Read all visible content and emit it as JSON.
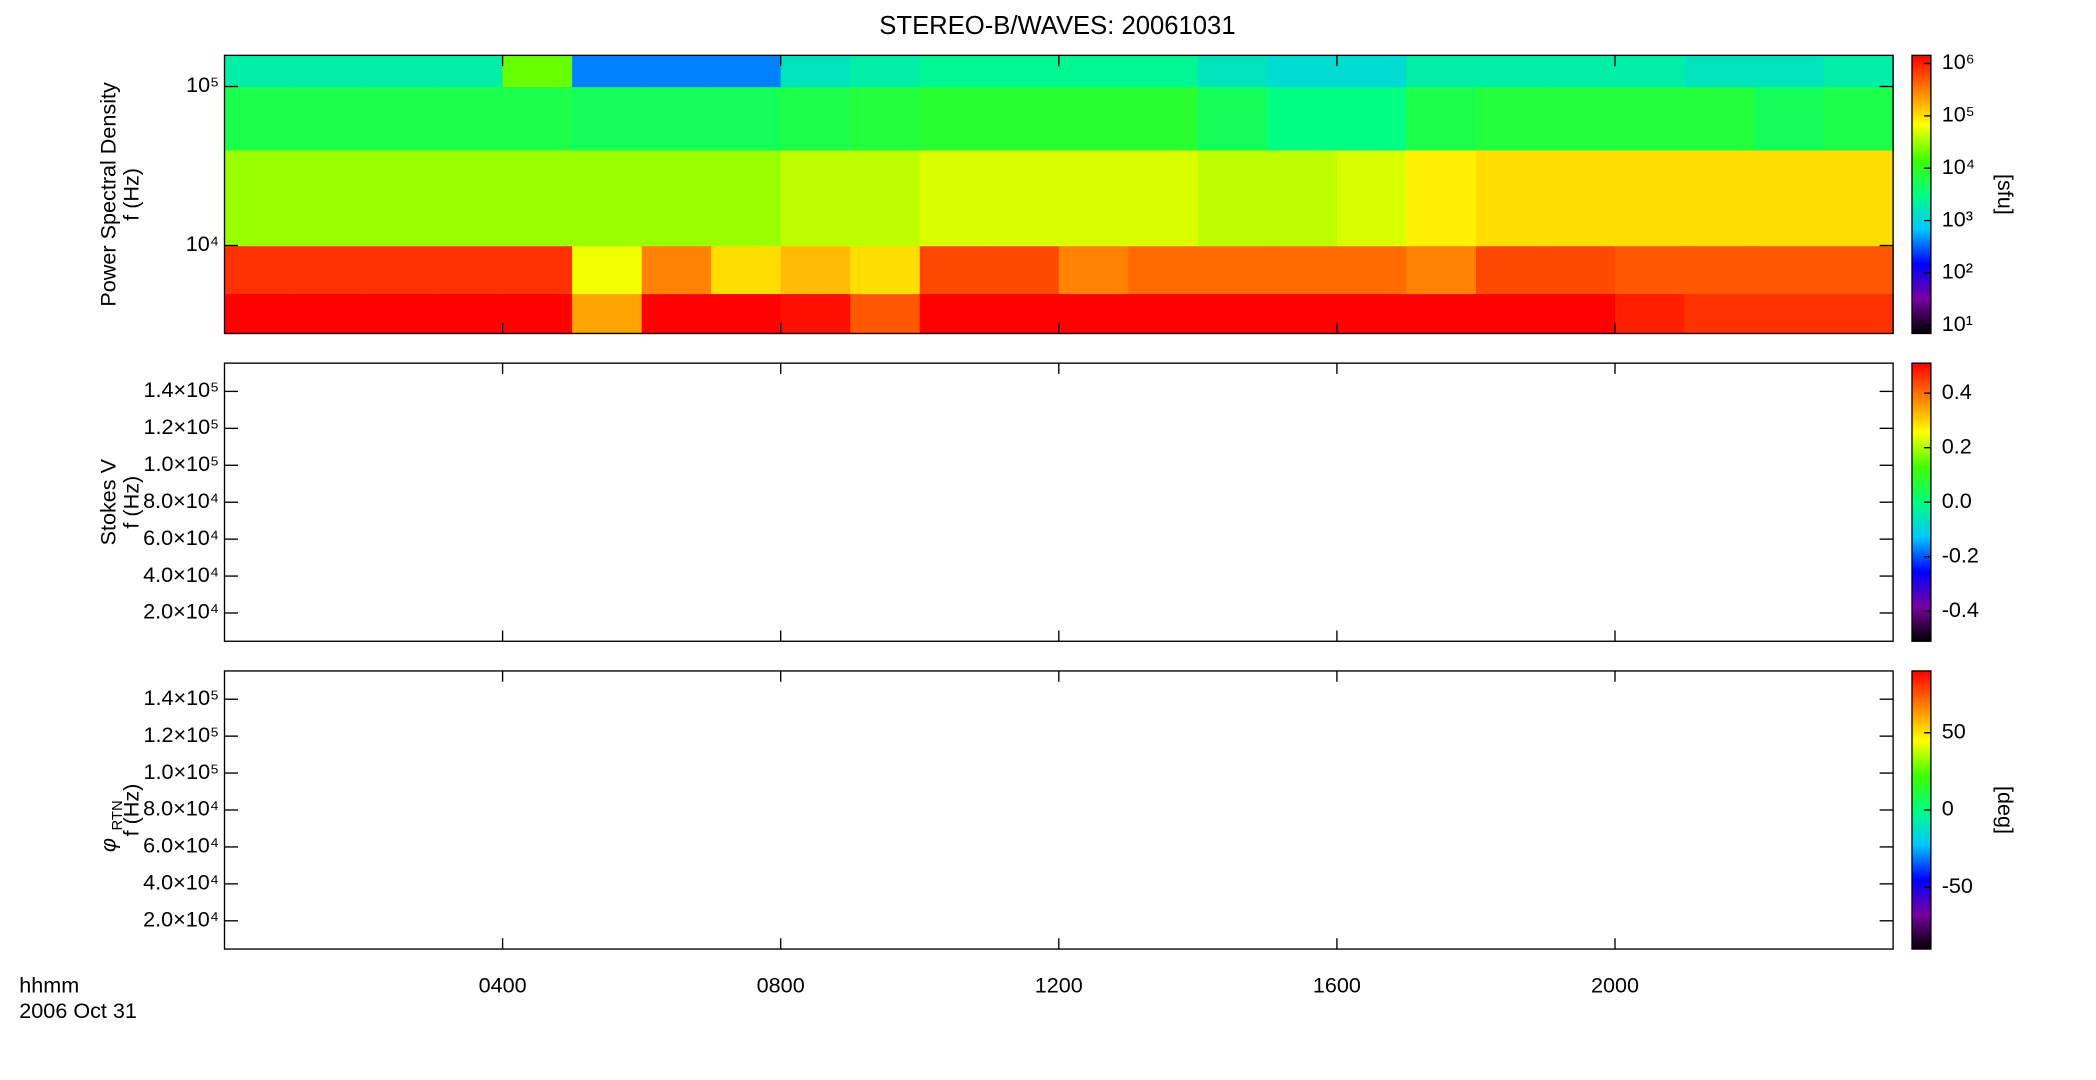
{
  "title": "STEREO-B/WAVES: 20061031",
  "x_axis": {
    "labels": [
      "hhmm",
      "2006 Oct 31"
    ],
    "xlim": [
      0,
      24
    ],
    "xticks": [
      {
        "value": 4,
        "label": "0400"
      },
      {
        "value": 8,
        "label": "0800"
      },
      {
        "value": 12,
        "label": "1200"
      },
      {
        "value": 16,
        "label": "1600"
      },
      {
        "value": 20,
        "label": "2000"
      }
    ]
  },
  "colormap": [
    "#000000",
    "#7800a0",
    "#0000ff",
    "#00c8ff",
    "#00ff80",
    "#40ff00",
    "#ffff00",
    "#ff8000",
    "#ff0000"
  ],
  "chart_data": [
    {
      "type": "heatmap",
      "ylabel": [
        "Power Spectral Density",
        "f (Hz)"
      ],
      "ylog": true,
      "ylim": [
        2800,
        157000
      ],
      "yticks": [
        {
          "value": 10000,
          "label": "10⁴"
        },
        {
          "value": 100000,
          "label": "10⁵"
        }
      ],
      "clog": true,
      "clim": [
        7,
        1430000
      ],
      "clabel": "[sfu]",
      "cticks": [
        {
          "value": 10,
          "label": "10¹"
        },
        {
          "value": 100,
          "label": "10²"
        },
        {
          "value": 1000,
          "label": "10³"
        },
        {
          "value": 10000,
          "label": "10⁴"
        },
        {
          "value": 100000,
          "label": "10⁵"
        },
        {
          "value": 1000000,
          "label": "10⁶"
        }
      ],
      "xbins": [
        0,
        1,
        2,
        3,
        4,
        5,
        6,
        7,
        8,
        9,
        10,
        11,
        12,
        13,
        14,
        15,
        16,
        17,
        18,
        19,
        20,
        21,
        22,
        23,
        24
      ],
      "ybins": [
        2800,
        5000,
        10000,
        40000,
        100000,
        157000
      ],
      "z": [
        [
          1400000,
          1400000,
          1400000,
          1400000,
          1400000,
          200000,
          1400000,
          1400000,
          1200000,
          500000,
          1400000,
          1400000,
          1400000,
          1400000,
          1400000,
          1400000,
          1400000,
          1400000,
          1400000,
          1400000,
          1000000,
          800000,
          800000,
          800000
        ],
        [
          800000,
          800000,
          800000,
          800000,
          800000,
          60000,
          300000,
          100000,
          150000,
          100000,
          600000,
          600000,
          300000,
          400000,
          400000,
          400000,
          400000,
          300000,
          600000,
          600000,
          500000,
          500000,
          500000,
          500000
        ],
        [
          30000,
          30000,
          30000,
          30000,
          30000,
          30000,
          30000,
          30000,
          40000,
          40000,
          50000,
          50000,
          50000,
          50000,
          40000,
          40000,
          50000,
          80000,
          100000,
          100000,
          100000,
          100000,
          100000,
          100000
        ],
        [
          6000,
          6000,
          6000,
          6000,
          6000,
          5000,
          5000,
          5000,
          6000,
          7000,
          8000,
          8000,
          8000,
          8000,
          5000,
          3000,
          3000,
          6000,
          7000,
          7000,
          7000,
          7000,
          5000,
          6000
        ],
        [
          2000,
          2000,
          2000,
          2000,
          20000,
          400,
          400,
          400,
          1500,
          2000,
          2500,
          2500,
          2500,
          2500,
          1500,
          1200,
          1200,
          2000,
          2000,
          2000,
          2000,
          1500,
          1500,
          2000
        ]
      ]
    },
    {
      "type": "heatmap",
      "ylabel": [
        "Stokes V",
        "f (Hz)"
      ],
      "ylim": [
        4700,
        155300
      ],
      "yticks": [
        {
          "value": 20000,
          "label": "2.0×10⁴"
        },
        {
          "value": 40000,
          "label": "4.0×10⁴"
        },
        {
          "value": 60000,
          "label": "6.0×10⁴"
        },
        {
          "value": 80000,
          "label": "8.0×10⁴"
        },
        {
          "value": 100000,
          "label": "1.0×10⁵"
        },
        {
          "value": 120000,
          "label": "1.2×10⁵"
        },
        {
          "value": 140000,
          "label": "1.4×10⁵"
        }
      ],
      "clim": [
        -0.51,
        0.51
      ],
      "cticks": [
        -0.4,
        -0.2,
        {
          "value": 0,
          "label": "0.0"
        },
        0.2,
        0.4
      ]
    },
    {
      "type": "heatmap",
      "ylabel_symbol": "φ",
      "ylabel_subscript": "RTN",
      "ylabel": [
        "f (Hz)"
      ],
      "ylim": [
        4700,
        155300
      ],
      "yticks": [
        {
          "value": 20000,
          "label": "2.0×10⁴"
        },
        {
          "value": 40000,
          "label": "4.0×10⁴"
        },
        {
          "value": 60000,
          "label": "6.0×10⁴"
        },
        {
          "value": 80000,
          "label": "8.0×10⁴"
        },
        {
          "value": 100000,
          "label": "1.0×10⁵"
        },
        {
          "value": 120000,
          "label": "1.2×10⁵"
        },
        {
          "value": 140000,
          "label": "1.4×10⁵"
        }
      ],
      "clim": [
        -90,
        90
      ],
      "cticks": [
        -50,
        0,
        50
      ],
      "clabel": "[deg]"
    }
  ]
}
